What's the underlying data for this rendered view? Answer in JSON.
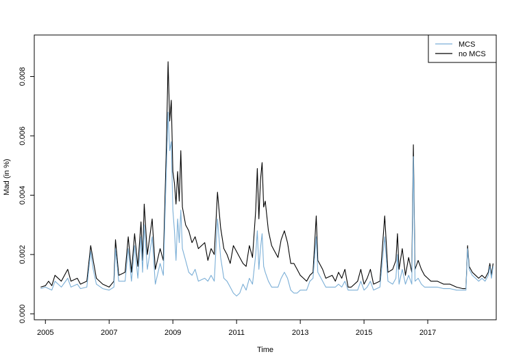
{
  "chart_data": {
    "type": "line",
    "title": "",
    "xlabel": "Time",
    "ylabel": "Mad (in %)",
    "xlim": [
      2004.65,
      2019.15
    ],
    "ylim": [
      -0.0002,
      0.0094
    ],
    "x_ticks": [
      2005,
      2007,
      2009,
      2011,
      2013,
      2015,
      2017
    ],
    "x_tick_labels": [
      "2005",
      "2007",
      "2009",
      "2011",
      "2013",
      "2015",
      "2017"
    ],
    "y_ticks": [
      0.0,
      0.002,
      0.004,
      0.006,
      0.008
    ],
    "y_tick_labels": [
      "0.000",
      "0.002",
      "0.004",
      "0.006",
      "0.008"
    ],
    "legend": {
      "position": "top-right",
      "entries": [
        "MCS",
        "no MCS"
      ]
    },
    "grid": false,
    "series": [
      {
        "name": "no MCS",
        "color": "#000000",
        "points": [
          [
            2004.85,
            0.0009
          ],
          [
            2005.0,
            0.00095
          ],
          [
            2005.1,
            0.0011
          ],
          [
            2005.2,
            0.00095
          ],
          [
            2005.3,
            0.0013
          ],
          [
            2005.5,
            0.0011
          ],
          [
            2005.7,
            0.0015
          ],
          [
            2005.8,
            0.0011
          ],
          [
            2006.0,
            0.0012
          ],
          [
            2006.1,
            0.001
          ],
          [
            2006.3,
            0.0011
          ],
          [
            2006.42,
            0.0023
          ],
          [
            2006.5,
            0.0018
          ],
          [
            2006.6,
            0.0012
          ],
          [
            2006.8,
            0.001
          ],
          [
            2007.0,
            0.0009
          ],
          [
            2007.15,
            0.0011
          ],
          [
            2007.2,
            0.0025
          ],
          [
            2007.3,
            0.0013
          ],
          [
            2007.5,
            0.0014
          ],
          [
            2007.6,
            0.0026
          ],
          [
            2007.7,
            0.0014
          ],
          [
            2007.8,
            0.0027
          ],
          [
            2007.9,
            0.0016
          ],
          [
            2008.0,
            0.0031
          ],
          [
            2008.05,
            0.0018
          ],
          [
            2008.1,
            0.0037
          ],
          [
            2008.2,
            0.002
          ],
          [
            2008.35,
            0.0032
          ],
          [
            2008.45,
            0.0015
          ],
          [
            2008.6,
            0.0022
          ],
          [
            2008.7,
            0.0018
          ],
          [
            2008.75,
            0.0038
          ],
          [
            2008.8,
            0.0058
          ],
          [
            2008.85,
            0.0085
          ],
          [
            2008.9,
            0.0065
          ],
          [
            2008.95,
            0.0072
          ],
          [
            2009.0,
            0.0048
          ],
          [
            2009.05,
            0.0044
          ],
          [
            2009.1,
            0.0037
          ],
          [
            2009.15,
            0.0048
          ],
          [
            2009.2,
            0.0038
          ],
          [
            2009.25,
            0.0055
          ],
          [
            2009.3,
            0.0036
          ],
          [
            2009.4,
            0.003
          ],
          [
            2009.5,
            0.0028
          ],
          [
            2009.6,
            0.0024
          ],
          [
            2009.7,
            0.0026
          ],
          [
            2009.8,
            0.0022
          ],
          [
            2010.0,
            0.0024
          ],
          [
            2010.1,
            0.0018
          ],
          [
            2010.2,
            0.0022
          ],
          [
            2010.3,
            0.002
          ],
          [
            2010.4,
            0.0041
          ],
          [
            2010.5,
            0.0029
          ],
          [
            2010.6,
            0.0022
          ],
          [
            2010.7,
            0.002
          ],
          [
            2010.8,
            0.0017
          ],
          [
            2010.9,
            0.0023
          ],
          [
            2011.0,
            0.0021
          ],
          [
            2011.1,
            0.0019
          ],
          [
            2011.2,
            0.0017
          ],
          [
            2011.3,
            0.0016
          ],
          [
            2011.4,
            0.0023
          ],
          [
            2011.5,
            0.0019
          ],
          [
            2011.6,
            0.0035
          ],
          [
            2011.65,
            0.0049
          ],
          [
            2011.7,
            0.0032
          ],
          [
            2011.75,
            0.0045
          ],
          [
            2011.8,
            0.0051
          ],
          [
            2011.85,
            0.0036
          ],
          [
            2011.9,
            0.0038
          ],
          [
            2012.0,
            0.0028
          ],
          [
            2012.1,
            0.0023
          ],
          [
            2012.2,
            0.0021
          ],
          [
            2012.3,
            0.0019
          ],
          [
            2012.4,
            0.0025
          ],
          [
            2012.5,
            0.0028
          ],
          [
            2012.6,
            0.0024
          ],
          [
            2012.7,
            0.0017
          ],
          [
            2012.8,
            0.0017
          ],
          [
            2012.9,
            0.0015
          ],
          [
            2013.0,
            0.0013
          ],
          [
            2013.1,
            0.0012
          ],
          [
            2013.2,
            0.0011
          ],
          [
            2013.3,
            0.0013
          ],
          [
            2013.4,
            0.0014
          ],
          [
            2013.5,
            0.0033
          ],
          [
            2013.55,
            0.0018
          ],
          [
            2013.7,
            0.0015
          ],
          [
            2013.8,
            0.0012
          ],
          [
            2014.0,
            0.0013
          ],
          [
            2014.1,
            0.0011
          ],
          [
            2014.2,
            0.0014
          ],
          [
            2014.3,
            0.0012
          ],
          [
            2014.4,
            0.0015
          ],
          [
            2014.5,
            0.0009
          ],
          [
            2014.6,
            0.0009
          ],
          [
            2014.8,
            0.0011
          ],
          [
            2014.9,
            0.0015
          ],
          [
            2015.0,
            0.001
          ],
          [
            2015.1,
            0.0012
          ],
          [
            2015.2,
            0.0015
          ],
          [
            2015.3,
            0.001
          ],
          [
            2015.5,
            0.0011
          ],
          [
            2015.65,
            0.0033
          ],
          [
            2015.75,
            0.0014
          ],
          [
            2015.9,
            0.0015
          ],
          [
            2016.0,
            0.0018
          ],
          [
            2016.05,
            0.0027
          ],
          [
            2016.1,
            0.0015
          ],
          [
            2016.2,
            0.0022
          ],
          [
            2016.3,
            0.0013
          ],
          [
            2016.4,
            0.0019
          ],
          [
            2016.5,
            0.0014
          ],
          [
            2016.55,
            0.0057
          ],
          [
            2016.6,
            0.0015
          ],
          [
            2016.7,
            0.0018
          ],
          [
            2016.8,
            0.0015
          ],
          [
            2016.9,
            0.0013
          ],
          [
            2017.0,
            0.0012
          ],
          [
            2017.1,
            0.0011
          ],
          [
            2017.3,
            0.0011
          ],
          [
            2017.5,
            0.001
          ],
          [
            2017.7,
            0.001
          ],
          [
            2017.9,
            0.0009
          ],
          [
            2018.1,
            0.00085
          ],
          [
            2018.2,
            0.00085
          ],
          [
            2018.25,
            0.0023
          ],
          [
            2018.3,
            0.0016
          ],
          [
            2018.4,
            0.0014
          ],
          [
            2018.5,
            0.0013
          ],
          [
            2018.6,
            0.0012
          ],
          [
            2018.7,
            0.0013
          ],
          [
            2018.8,
            0.0012
          ],
          [
            2018.9,
            0.0014
          ],
          [
            2018.95,
            0.0017
          ],
          [
            2019.0,
            0.0013
          ],
          [
            2019.05,
            0.0017
          ]
        ]
      },
      {
        "name": "MCS",
        "color": "#7aaed6",
        "points": [
          [
            2004.85,
            0.00085
          ],
          [
            2005.0,
            0.0009
          ],
          [
            2005.1,
            0.00085
          ],
          [
            2005.2,
            0.0008
          ],
          [
            2005.3,
            0.0011
          ],
          [
            2005.5,
            0.0009
          ],
          [
            2005.7,
            0.0012
          ],
          [
            2005.8,
            0.0009
          ],
          [
            2006.0,
            0.001
          ],
          [
            2006.1,
            0.00085
          ],
          [
            2006.3,
            0.0009
          ],
          [
            2006.42,
            0.0021
          ],
          [
            2006.5,
            0.0015
          ],
          [
            2006.6,
            0.001
          ],
          [
            2006.8,
            0.00085
          ],
          [
            2007.0,
            0.0008
          ],
          [
            2007.15,
            0.0009
          ],
          [
            2007.2,
            0.0022
          ],
          [
            2007.3,
            0.0011
          ],
          [
            2007.5,
            0.0011
          ],
          [
            2007.6,
            0.0022
          ],
          [
            2007.7,
            0.0011
          ],
          [
            2007.8,
            0.0023
          ],
          [
            2007.9,
            0.0012
          ],
          [
            2008.0,
            0.0026
          ],
          [
            2008.05,
            0.0014
          ],
          [
            2008.1,
            0.003
          ],
          [
            2008.2,
            0.0015
          ],
          [
            2008.35,
            0.0026
          ],
          [
            2008.45,
            0.001
          ],
          [
            2008.6,
            0.0017
          ],
          [
            2008.7,
            0.0013
          ],
          [
            2008.75,
            0.0032
          ],
          [
            2008.8,
            0.005
          ],
          [
            2008.85,
            0.0068
          ],
          [
            2008.9,
            0.0055
          ],
          [
            2008.95,
            0.0058
          ],
          [
            2009.0,
            0.0035
          ],
          [
            2009.05,
            0.0028
          ],
          [
            2009.1,
            0.0018
          ],
          [
            2009.15,
            0.0032
          ],
          [
            2009.2,
            0.0024
          ],
          [
            2009.25,
            0.0035
          ],
          [
            2009.3,
            0.0022
          ],
          [
            2009.4,
            0.0018
          ],
          [
            2009.5,
            0.0014
          ],
          [
            2009.6,
            0.0013
          ],
          [
            2009.7,
            0.0015
          ],
          [
            2009.8,
            0.0011
          ],
          [
            2010.0,
            0.0012
          ],
          [
            2010.1,
            0.0011
          ],
          [
            2010.2,
            0.0013
          ],
          [
            2010.3,
            0.0011
          ],
          [
            2010.4,
            0.0032
          ],
          [
            2010.5,
            0.0019
          ],
          [
            2010.6,
            0.0012
          ],
          [
            2010.7,
            0.0011
          ],
          [
            2010.8,
            0.0009
          ],
          [
            2010.9,
            0.0007
          ],
          [
            2011.0,
            0.0006
          ],
          [
            2011.1,
            0.0007
          ],
          [
            2011.2,
            0.001
          ],
          [
            2011.3,
            0.0008
          ],
          [
            2011.4,
            0.0012
          ],
          [
            2011.5,
            0.001
          ],
          [
            2011.6,
            0.002
          ],
          [
            2011.65,
            0.0028
          ],
          [
            2011.7,
            0.0015
          ],
          [
            2011.75,
            0.0022
          ],
          [
            2011.8,
            0.0027
          ],
          [
            2011.85,
            0.0016
          ],
          [
            2011.9,
            0.0014
          ],
          [
            2012.0,
            0.0011
          ],
          [
            2012.1,
            0.0009
          ],
          [
            2012.2,
            0.0009
          ],
          [
            2012.3,
            0.0009
          ],
          [
            2012.4,
            0.0012
          ],
          [
            2012.5,
            0.0014
          ],
          [
            2012.6,
            0.0012
          ],
          [
            2012.7,
            0.0008
          ],
          [
            2012.8,
            0.0007
          ],
          [
            2012.9,
            0.0007
          ],
          [
            2013.0,
            0.0008
          ],
          [
            2013.1,
            0.0008
          ],
          [
            2013.2,
            0.0008
          ],
          [
            2013.3,
            0.0011
          ],
          [
            2013.4,
            0.0012
          ],
          [
            2013.5,
            0.0026
          ],
          [
            2013.55,
            0.0014
          ],
          [
            2013.7,
            0.0011
          ],
          [
            2013.8,
            0.0009
          ],
          [
            2014.0,
            0.0009
          ],
          [
            2014.1,
            0.0009
          ],
          [
            2014.2,
            0.001
          ],
          [
            2014.3,
            0.0009
          ],
          [
            2014.4,
            0.0011
          ],
          [
            2014.5,
            0.0008
          ],
          [
            2014.6,
            0.0008
          ],
          [
            2014.8,
            0.0008
          ],
          [
            2014.9,
            0.0011
          ],
          [
            2015.0,
            0.0008
          ],
          [
            2015.1,
            0.0009
          ],
          [
            2015.2,
            0.0011
          ],
          [
            2015.3,
            0.0008
          ],
          [
            2015.5,
            0.0009
          ],
          [
            2015.65,
            0.0026
          ],
          [
            2015.75,
            0.0011
          ],
          [
            2015.9,
            0.001
          ],
          [
            2016.0,
            0.0012
          ],
          [
            2016.05,
            0.002
          ],
          [
            2016.1,
            0.001
          ],
          [
            2016.2,
            0.0015
          ],
          [
            2016.3,
            0.001
          ],
          [
            2016.4,
            0.0013
          ],
          [
            2016.5,
            0.001
          ],
          [
            2016.55,
            0.0053
          ],
          [
            2016.6,
            0.0011
          ],
          [
            2016.7,
            0.0012
          ],
          [
            2016.8,
            0.001
          ],
          [
            2016.9,
            0.0009
          ],
          [
            2017.0,
            0.0009
          ],
          [
            2017.1,
            0.0009
          ],
          [
            2017.3,
            0.0009
          ],
          [
            2017.5,
            0.00085
          ],
          [
            2017.7,
            0.00085
          ],
          [
            2017.9,
            0.0008
          ],
          [
            2018.1,
            0.0008
          ],
          [
            2018.2,
            0.0008
          ],
          [
            2018.25,
            0.0022
          ],
          [
            2018.3,
            0.0015
          ],
          [
            2018.4,
            0.0013
          ],
          [
            2018.5,
            0.0012
          ],
          [
            2018.6,
            0.0011
          ],
          [
            2018.7,
            0.0012
          ],
          [
            2018.8,
            0.0011
          ],
          [
            2018.9,
            0.0013
          ],
          [
            2018.95,
            0.0016
          ],
          [
            2019.0,
            0.0012
          ],
          [
            2019.05,
            0.0016
          ]
        ]
      }
    ]
  }
}
